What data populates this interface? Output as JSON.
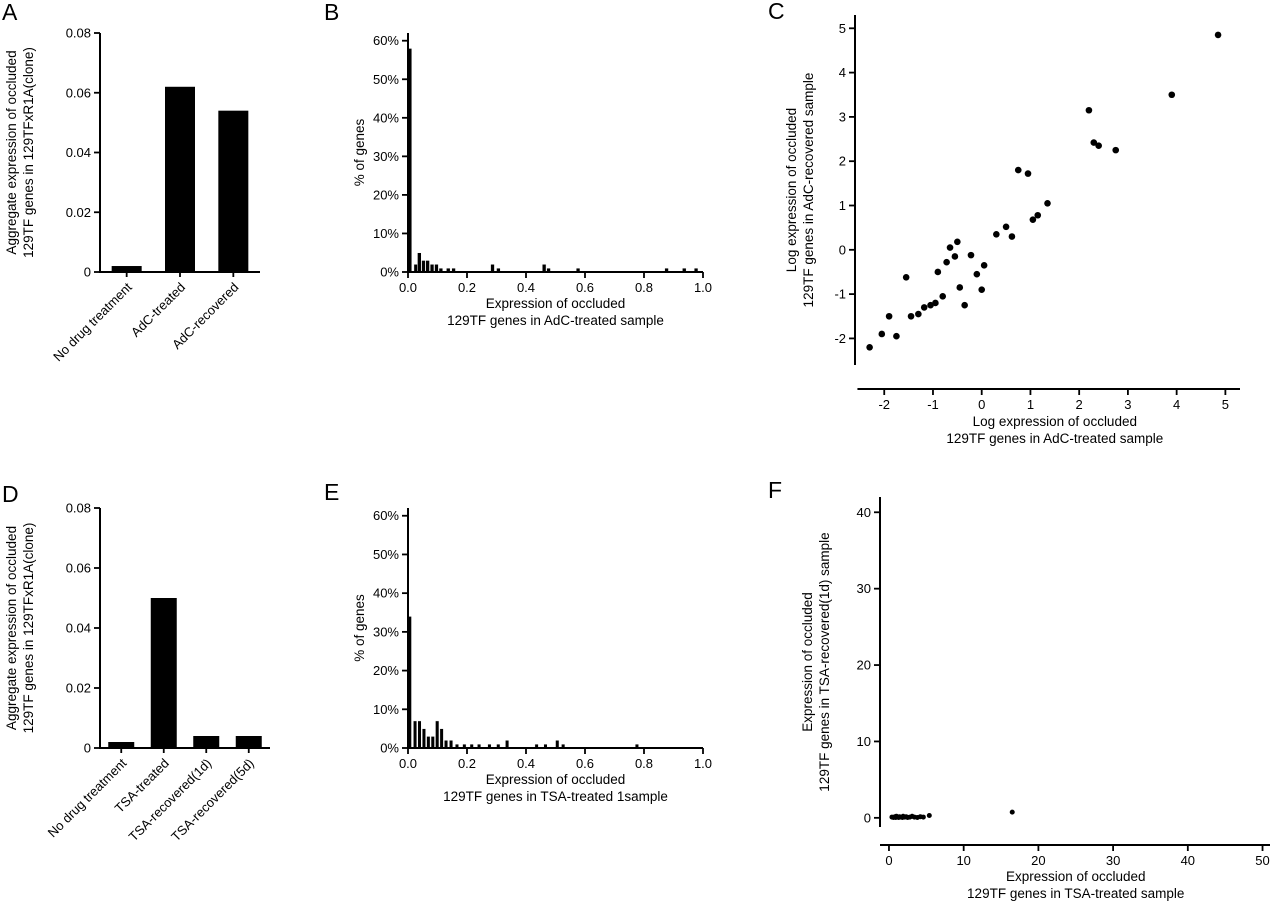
{
  "figure": {
    "background_color": "#ffffff",
    "ink_color": "#000000"
  },
  "chart_data": [
    {
      "panel": "A",
      "type": "bar",
      "y": {
        "min": 0,
        "max": 0.08,
        "ticks": [
          0,
          0.02,
          0.04,
          0.06,
          0.08
        ],
        "tick_labels": [
          "0",
          "0.02",
          "0.04",
          "0.06",
          "0.08"
        ],
        "label": [
          "Aggregate expression of occluded",
          "129TF genes in 129TFxR1A(clone)"
        ]
      },
      "categories": [
        "No drug treatment",
        "AdC-treated",
        "AdC-recovered"
      ],
      "values": [
        0.002,
        0.062,
        0.054
      ]
    },
    {
      "panel": "B",
      "type": "histogram",
      "x": {
        "min": 0,
        "max": 1.0,
        "ticks": [
          0,
          0.2,
          0.4,
          0.6,
          0.8,
          1.0
        ],
        "tick_labels": [
          "0.0",
          "0.2",
          "0.4",
          "0.6",
          "0.8",
          "1.0"
        ],
        "label": [
          "Expression of occluded",
          "129TF genes in AdC-treated sample"
        ]
      },
      "y": {
        "min": 0,
        "max": 62,
        "ticks": [
          0,
          10,
          20,
          30,
          40,
          50,
          60
        ],
        "tick_labels": [
          "0%",
          "10%",
          "20%",
          "30%",
          "40%",
          "50%",
          "60%"
        ],
        "label": [
          "% of genes"
        ]
      },
      "bin_width": 0.013,
      "bins": [
        [
          0.0,
          58
        ],
        [
          0.02,
          2
        ],
        [
          0.032,
          5
        ],
        [
          0.046,
          3
        ],
        [
          0.06,
          3
        ],
        [
          0.075,
          2
        ],
        [
          0.09,
          2
        ],
        [
          0.105,
          1
        ],
        [
          0.13,
          1
        ],
        [
          0.148,
          1
        ],
        [
          0.28,
          2
        ],
        [
          0.3,
          1
        ],
        [
          0.455,
          2
        ],
        [
          0.47,
          1
        ],
        [
          0.57,
          1
        ],
        [
          0.87,
          1
        ],
        [
          0.93,
          1
        ],
        [
          0.97,
          1
        ]
      ]
    },
    {
      "panel": "C",
      "type": "scatter",
      "x": {
        "min": -2.6,
        "max": 5.3,
        "axis_start": -2.55,
        "ticks": [
          -2,
          -1,
          0,
          1,
          2,
          3,
          4,
          5
        ],
        "tick_labels": [
          "-2",
          "-1",
          "0",
          "1",
          "2",
          "3",
          "4",
          "5"
        ],
        "label": [
          "Log expression of occluded",
          "129TF genes in AdC-treated sample"
        ]
      },
      "y": {
        "min": -2.6,
        "max": 5.3,
        "ticks": [
          -2,
          -1,
          0,
          1,
          2,
          3,
          4,
          5
        ],
        "tick_labels": [
          "-2",
          "-1",
          "0",
          "1",
          "2",
          "3",
          "4",
          "5"
        ],
        "label": [
          "Log expression of occluded",
          "129TF genes in AdC-recovered sample"
        ]
      },
      "points": [
        [
          -2.3,
          -2.2
        ],
        [
          -2.05,
          -1.9
        ],
        [
          -1.9,
          -1.5
        ],
        [
          -1.75,
          -1.95
        ],
        [
          -1.55,
          -0.62
        ],
        [
          -1.45,
          -1.5
        ],
        [
          -1.3,
          -1.45
        ],
        [
          -1.18,
          -1.3
        ],
        [
          -1.05,
          -1.25
        ],
        [
          -0.95,
          -1.2
        ],
        [
          -0.9,
          -0.5
        ],
        [
          -0.8,
          -1.05
        ],
        [
          -0.72,
          -0.28
        ],
        [
          -0.65,
          0.05
        ],
        [
          -0.55,
          -0.15
        ],
        [
          -0.5,
          0.18
        ],
        [
          -0.45,
          -0.85
        ],
        [
          -0.35,
          -1.25
        ],
        [
          -0.22,
          -0.12
        ],
        [
          -0.1,
          -0.55
        ],
        [
          0.0,
          -0.9
        ],
        [
          0.05,
          -0.35
        ],
        [
          0.3,
          0.35
        ],
        [
          0.5,
          0.52
        ],
        [
          0.62,
          0.3
        ],
        [
          0.75,
          1.8
        ],
        [
          0.95,
          1.72
        ],
        [
          1.05,
          0.68
        ],
        [
          1.15,
          0.78
        ],
        [
          1.35,
          1.05
        ],
        [
          2.2,
          3.15
        ],
        [
          2.3,
          2.42
        ],
        [
          2.4,
          2.35
        ],
        [
          2.75,
          2.25
        ],
        [
          3.9,
          3.5
        ],
        [
          4.85,
          4.85
        ]
      ]
    },
    {
      "panel": "D",
      "type": "bar",
      "y": {
        "min": 0,
        "max": 0.08,
        "ticks": [
          0,
          0.02,
          0.04,
          0.06,
          0.08
        ],
        "tick_labels": [
          "0",
          "0.02",
          "0.04",
          "0.06",
          "0.08"
        ],
        "label": [
          "Aggregate expression of occluded",
          "129TF genes in 129TFxR1A(clone)"
        ]
      },
      "categories": [
        "No drug treatment",
        "TSA-treated",
        "TSA-recovered(1d)",
        "TSA-recovered(5d)"
      ],
      "values": [
        0.002,
        0.05,
        0.004,
        0.004
      ]
    },
    {
      "panel": "E",
      "type": "histogram",
      "x": {
        "min": 0,
        "max": 1.0,
        "ticks": [
          0,
          0.2,
          0.4,
          0.6,
          0.8,
          1.0
        ],
        "tick_labels": [
          "0.0",
          "0.2",
          "0.4",
          "0.6",
          "0.8",
          "1.0"
        ],
        "label": [
          "Expression of occluded",
          "129TF genes in TSA-treated 1sample"
        ]
      },
      "y": {
        "min": 0,
        "max": 62,
        "ticks": [
          0,
          10,
          20,
          30,
          40,
          50,
          60
        ],
        "tick_labels": [
          "0%",
          "10%",
          "20%",
          "30%",
          "40%",
          "50%",
          "60%"
        ],
        "label": [
          "% of genes"
        ]
      },
      "bin_width": 0.012,
      "bins": [
        [
          0.0,
          34
        ],
        [
          0.018,
          7
        ],
        [
          0.033,
          7
        ],
        [
          0.048,
          5
        ],
        [
          0.063,
          3
        ],
        [
          0.078,
          3
        ],
        [
          0.093,
          7
        ],
        [
          0.108,
          5
        ],
        [
          0.123,
          2
        ],
        [
          0.14,
          2
        ],
        [
          0.16,
          1
        ],
        [
          0.185,
          1
        ],
        [
          0.21,
          1
        ],
        [
          0.235,
          1
        ],
        [
          0.27,
          1
        ],
        [
          0.3,
          1
        ],
        [
          0.33,
          2
        ],
        [
          0.43,
          1
        ],
        [
          0.46,
          1
        ],
        [
          0.5,
          2
        ],
        [
          0.52,
          1
        ],
        [
          0.77,
          1
        ]
      ]
    },
    {
      "panel": "F",
      "type": "scatter",
      "x": {
        "min": -1.2,
        "max": 51,
        "axis_start": -1.2,
        "ticks": [
          0,
          10,
          20,
          30,
          40,
          50
        ],
        "tick_labels": [
          "0",
          "10",
          "20",
          "30",
          "40",
          "50"
        ],
        "label": [
          "Expression of occluded",
          "129TF genes in TSA-treated sample"
        ]
      },
      "y": {
        "min": -1.2,
        "max": 42,
        "ticks": [
          0,
          10,
          20,
          30,
          40
        ],
        "tick_labels": [
          "0",
          "10",
          "20",
          "30",
          "40"
        ],
        "label": [
          "Expression of occluded",
          "129TF genes in TSA-recovered(1d) sample"
        ]
      },
      "points": [
        [
          0.4,
          0.1
        ],
        [
          0.6,
          0.05
        ],
        [
          0.8,
          0.15
        ],
        [
          0.9,
          0.05
        ],
        [
          1.0,
          0.2
        ],
        [
          1.1,
          0.1
        ],
        [
          1.3,
          0.05
        ],
        [
          1.4,
          0.15
        ],
        [
          1.6,
          0.1
        ],
        [
          1.8,
          0.05
        ],
        [
          1.9,
          0.2
        ],
        [
          2.1,
          0.1
        ],
        [
          2.3,
          0.15
        ],
        [
          2.5,
          0.05
        ],
        [
          2.8,
          0.1
        ],
        [
          3.1,
          0.2
        ],
        [
          3.4,
          0.1
        ],
        [
          3.8,
          0.05
        ],
        [
          4.2,
          0.15
        ],
        [
          4.6,
          0.1
        ],
        [
          5.4,
          0.3
        ],
        [
          16.5,
          0.75
        ]
      ]
    }
  ]
}
